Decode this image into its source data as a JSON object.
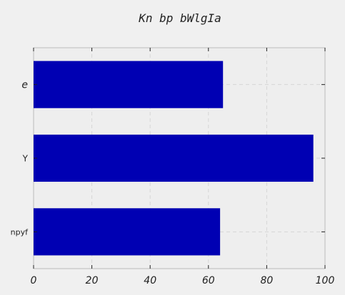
{
  "chart_data": {
    "type": "bar",
    "orientation": "horizontal",
    "title": "Kn bp bWlgIa",
    "xlabel": "",
    "ylabel": "",
    "categories": [
      "e",
      "Y",
      "npyf"
    ],
    "values": [
      65,
      96,
      64
    ],
    "xlim": [
      0,
      100
    ],
    "xticks": [
      "0",
      "20",
      "40",
      "60",
      "80",
      "100"
    ],
    "grid": true,
    "bar_color": "#0000b3"
  }
}
